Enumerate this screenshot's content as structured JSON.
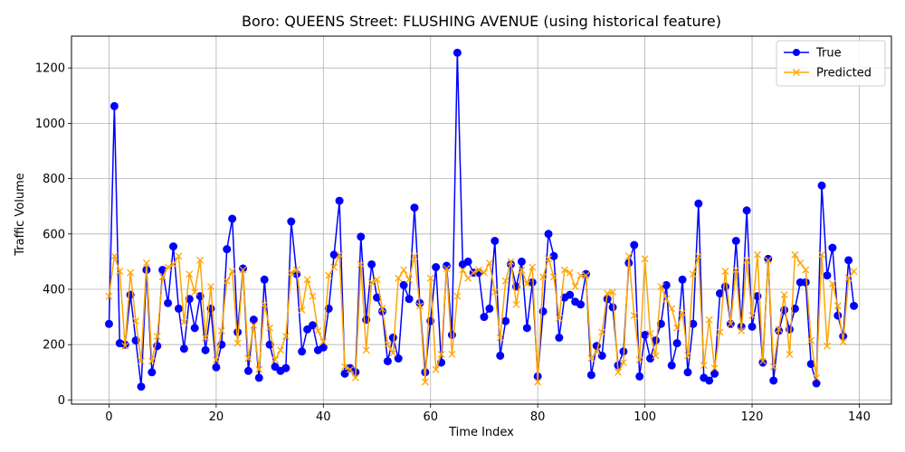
{
  "chart_data": {
    "type": "line",
    "title": "Boro: QUEENS Street: FLUSHING AVENUE (using historical feature)",
    "xlabel": "Time Index",
    "ylabel": "Traffic Volume",
    "xlim": [
      -7,
      146
    ],
    "ylim": [
      -15,
      1315
    ],
    "xticks": [
      0,
      20,
      40,
      60,
      80,
      100,
      120,
      140
    ],
    "yticks": [
      0,
      200,
      400,
      600,
      800,
      1000,
      1200
    ],
    "grid": true,
    "legend_position": "top-right",
    "series": [
      {
        "name": "True",
        "color": "#0000ff",
        "marker": "circle",
        "values": [
          275,
          1062,
          205,
          200,
          380,
          215,
          48,
          470,
          100,
          195,
          470,
          350,
          555,
          330,
          185,
          365,
          260,
          375,
          180,
          330,
          118,
          200,
          545,
          655,
          245,
          475,
          105,
          290,
          80,
          435,
          200,
          120,
          105,
          115,
          645,
          455,
          175,
          255,
          270,
          180,
          190,
          330,
          525,
          720,
          95,
          115,
          100,
          590,
          290,
          490,
          370,
          320,
          140,
          225,
          150,
          415,
          365,
          695,
          350,
          100,
          285,
          480,
          135,
          485,
          235,
          1255,
          490,
          500,
          460,
          460,
          300,
          330,
          575,
          160,
          285,
          490,
          410,
          500,
          260,
          425,
          85,
          320,
          600,
          520,
          225,
          370,
          380,
          355,
          345,
          455,
          90,
          195,
          160,
          365,
          335,
          125,
          175,
          495,
          560,
          85,
          235,
          150,
          215,
          275,
          415,
          125,
          205,
          435,
          100,
          275,
          710,
          80,
          70,
          95,
          385,
          410,
          275,
          575,
          265,
          685,
          265,
          375,
          135,
          510,
          70,
          250,
          325,
          255,
          330,
          425,
          425,
          130,
          60,
          775,
          450,
          550,
          305,
          230,
          505,
          340
        ]
      },
      {
        "name": "Predicted",
        "color": "#ffa500",
        "marker": "x",
        "values": [
          375,
          520,
          465,
          195,
          460,
          285,
          140,
          495,
          140,
          230,
          445,
          480,
          490,
          520,
          280,
          455,
          390,
          505,
          225,
          410,
          145,
          250,
          430,
          465,
          205,
          470,
          150,
          270,
          110,
          345,
          260,
          145,
          180,
          230,
          460,
          470,
          325,
          435,
          375,
          250,
          210,
          450,
          480,
          525,
          120,
          110,
          80,
          490,
          180,
          425,
          435,
          330,
          200,
          170,
          440,
          470,
          435,
          520,
          340,
          65,
          440,
          110,
          165,
          475,
          165,
          375,
          470,
          440,
          460,
          470,
          460,
          495,
          390,
          225,
          430,
          500,
          345,
          470,
          420,
          480,
          65,
          445,
          510,
          445,
          295,
          470,
          460,
          410,
          450,
          450,
          150,
          175,
          245,
          385,
          390,
          100,
          135,
          520,
          305,
          145,
          510,
          240,
          160,
          410,
          365,
          330,
          260,
          315,
          160,
          455,
          520,
          125,
          290,
          115,
          245,
          465,
          275,
          470,
          250,
          505,
          305,
          525,
          140,
          505,
          120,
          255,
          380,
          165,
          525,
          495,
          470,
          215,
          80,
          525,
          195,
          420,
          340,
          210,
          440,
          465
        ]
      }
    ]
  }
}
